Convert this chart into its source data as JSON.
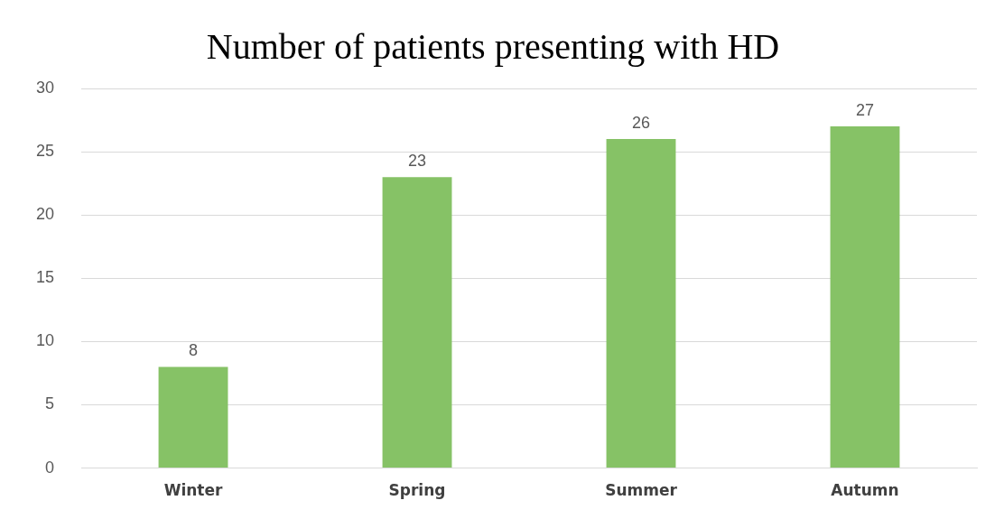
{
  "chart_data": {
    "type": "bar",
    "title": "Number of patients presenting with HD",
    "categories": [
      "Winter",
      "Spring",
      "Summer",
      "Autumn"
    ],
    "values": [
      8,
      23,
      26,
      27
    ],
    "color": "#86c266",
    "ylim": [
      0,
      30
    ],
    "yticks": [
      0,
      5,
      10,
      15,
      20,
      25,
      30
    ],
    "grid": "y",
    "legend": false,
    "data_labels": true
  }
}
